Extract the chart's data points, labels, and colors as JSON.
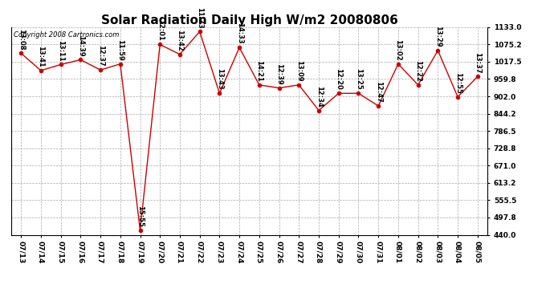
{
  "title": "Solar Radiation Daily High W/m2 20080806",
  "copyright": "Copyright 2008 Cartronics.com",
  "dates": [
    "07/13",
    "07/14",
    "07/15",
    "07/16",
    "07/17",
    "07/18",
    "07/19",
    "07/20",
    "07/21",
    "07/22",
    "07/23",
    "07/24",
    "07/25",
    "07/26",
    "07/27",
    "07/28",
    "07/29",
    "07/30",
    "07/31",
    "08/01",
    "08/02",
    "08/03",
    "08/04",
    "08/05"
  ],
  "values": [
    1046,
    988,
    1008,
    1024,
    990,
    1010,
    455,
    1075,
    1042,
    1118,
    912,
    1065,
    940,
    930,
    940,
    855,
    912,
    912,
    870,
    1010,
    940,
    1055,
    900,
    968
  ],
  "labels": [
    "13:08",
    "13:41",
    "13:11",
    "14:39",
    "12:37",
    "11:59",
    "15:55",
    "12:01",
    "13:42",
    "11:33",
    "13:43",
    "14:33",
    "14:21",
    "12:39",
    "13:09",
    "12:34",
    "12:20",
    "13:25",
    "12:47",
    "13:02",
    "12:22",
    "13:29",
    "12:55",
    "13:37"
  ],
  "line_color": "#cc0000",
  "marker_color": "#cc0000",
  "bg_color": "#ffffff",
  "plot_bg_color": "#ffffff",
  "grid_color": "#aaaaaa",
  "ylim_min": 440,
  "ylim_max": 1133,
  "yticks": [
    440.0,
    497.8,
    555.5,
    613.2,
    671.0,
    728.8,
    786.5,
    844.2,
    902.0,
    959.8,
    1017.5,
    1075.2,
    1133.0
  ],
  "ytick_labels": [
    "440.0",
    "497.8",
    "555.5",
    "613.2",
    "671.0",
    "728.8",
    "786.5",
    "844.2",
    "902.0",
    "959.8",
    "1017.5",
    "1075.2",
    "1133.0"
  ],
  "title_fontsize": 11,
  "label_fontsize": 6,
  "tick_fontsize": 6.5,
  "copyright_fontsize": 6
}
